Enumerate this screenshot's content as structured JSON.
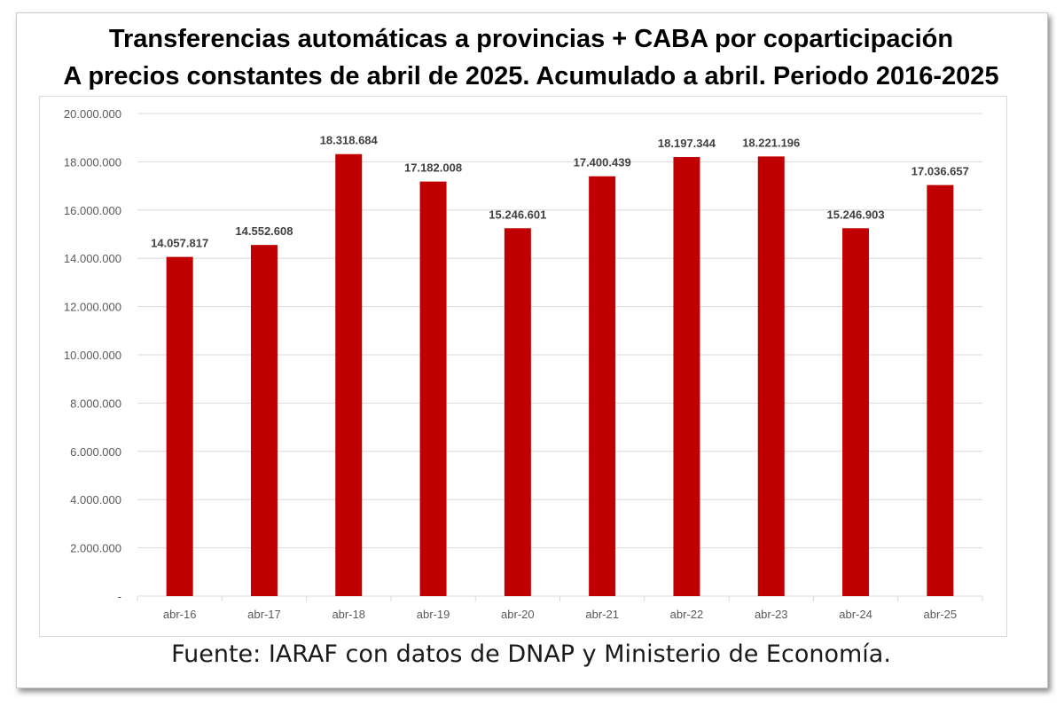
{
  "title_line1": "Transferencias automáticas a provincias + CABA por coparticipación",
  "title_line2": "A precios constantes de abril de 2025.  Acumulado a abril. Periodo 2016-2025",
  "source": "Fuente: IARAF con datos de DNAP y Ministerio de Economía.",
  "colors": {
    "bar": "#c00000",
    "grid": "#d9d9d9",
    "axis_text": "#595959",
    "label_text": "#404040"
  },
  "chart_data": {
    "type": "bar",
    "title": "Transferencias automáticas a provincias + CABA por coparticipación",
    "subtitle": "A precios constantes de abril de 2025.  Acumulado a abril. Periodo 2016-2025",
    "xlabel": "",
    "ylabel": "",
    "categories": [
      "abr-16",
      "abr-17",
      "abr-18",
      "abr-19",
      "abr-20",
      "abr-21",
      "abr-22",
      "abr-23",
      "abr-24",
      "abr-25"
    ],
    "values": [
      14057817,
      14552608,
      18318684,
      17182008,
      15246601,
      17400439,
      18197344,
      18221196,
      15246903,
      17036657
    ],
    "value_labels": [
      "14.057.817",
      "14.552.608",
      "18.318.684",
      "17.182.008",
      "15.246.601",
      "17.400.439",
      "18.197.344",
      "18.221.196",
      "15.246.903",
      "17.036.657"
    ],
    "ylim": [
      0,
      20000000
    ],
    "y_ticks": [
      0,
      2000000,
      4000000,
      6000000,
      8000000,
      10000000,
      12000000,
      14000000,
      16000000,
      18000000,
      20000000
    ],
    "y_tick_labels": [
      "-",
      "2.000.000",
      "4.000.000",
      "6.000.000",
      "8.000.000",
      "10.000.000",
      "12.000.000",
      "14.000.000",
      "16.000.000",
      "18.000.000",
      "20.000.000"
    ],
    "grid": true,
    "legend": "none"
  }
}
